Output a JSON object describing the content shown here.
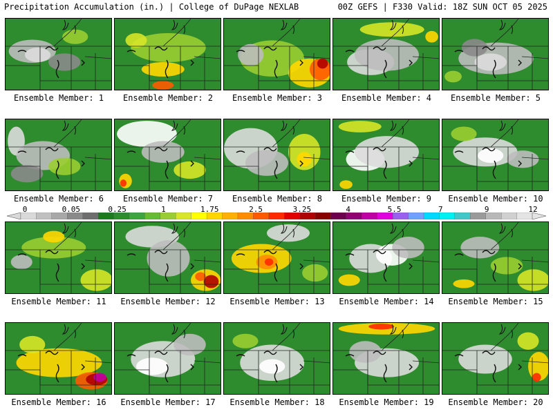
{
  "header": {
    "left": "Precipitation Accumulation (in.) | College of DuPage NEXLAB",
    "right": "00Z GEFS | F330 Valid: 18Z SUN OCT 05 2025"
  },
  "colors": {
    "background": "#ffffff",
    "base_green": "#2e8b2e"
  },
  "colorbar": {
    "ticks": [
      "0",
      "0.05",
      "0.25",
      "1",
      "1.75",
      "2.5",
      "3.25",
      "4",
      "5.5",
      "7",
      "9",
      "12"
    ],
    "colors": [
      "#d9d9d9",
      "#c0c0c0",
      "#a8a8a8",
      "#8a8a8a",
      "#6e6e6e",
      "#1e7a1e",
      "#2e8b2e",
      "#3fa33f",
      "#66bb33",
      "#9acd32",
      "#d7e628",
      "#ffff00",
      "#ffd700",
      "#ffb000",
      "#ff8c00",
      "#ff5a00",
      "#ff2a00",
      "#e00000",
      "#b00000",
      "#880000",
      "#6b004d",
      "#900070",
      "#c000a0",
      "#e000e0",
      "#9a60f0",
      "#6fa0ff",
      "#00d8ff",
      "#00f0f0",
      "#40c8c8",
      "#9a9a9a",
      "#b8b8b8",
      "#d0d0d0",
      "#e4e4e4"
    ]
  },
  "members": [
    {
      "label": "Ensemble Member: 1",
      "blobs": [
        [
          "#bdbdbd",
          0.25,
          0.45,
          0.22,
          0.16
        ],
        [
          "#dcdcdc",
          0.3,
          0.5,
          0.12,
          0.1
        ],
        [
          "#9acd32",
          0.65,
          0.25,
          0.12,
          0.1
        ],
        [
          "#8a8a8a",
          0.55,
          0.6,
          0.15,
          0.12
        ]
      ]
    },
    {
      "label": "Ensemble Member: 2",
      "blobs": [
        [
          "#9acd32",
          0.5,
          0.4,
          0.35,
          0.2
        ],
        [
          "#ffd700",
          0.45,
          0.7,
          0.2,
          0.1
        ],
        [
          "#ff5a00",
          0.45,
          0.92,
          0.1,
          0.06
        ],
        [
          "#d7e628",
          0.2,
          0.3,
          0.1,
          0.1
        ]
      ]
    },
    {
      "label": "Ensemble Member: 3",
      "blobs": [
        [
          "#9acd32",
          0.45,
          0.55,
          0.3,
          0.25
        ],
        [
          "#ffd700",
          0.8,
          0.75,
          0.2,
          0.2
        ],
        [
          "#ff5a00",
          0.9,
          0.7,
          0.1,
          0.15
        ],
        [
          "#b00000",
          0.92,
          0.62,
          0.05,
          0.07
        ],
        [
          "#bdbdbd",
          0.25,
          0.5,
          0.12,
          0.15
        ]
      ]
    },
    {
      "label": "Ensemble Member: 4",
      "blobs": [
        [
          "#dcdcdc",
          0.35,
          0.6,
          0.22,
          0.18
        ],
        [
          "#bdbdbd",
          0.5,
          0.5,
          0.3,
          0.22
        ],
        [
          "#d7e628",
          0.55,
          0.15,
          0.3,
          0.1
        ],
        [
          "#ffd700",
          0.92,
          0.25,
          0.06,
          0.08
        ]
      ]
    },
    {
      "label": "Ensemble Member: 5",
      "blobs": [
        [
          "#bdbdbd",
          0.5,
          0.55,
          0.35,
          0.22
        ],
        [
          "#dcdcdc",
          0.45,
          0.6,
          0.15,
          0.12
        ],
        [
          "#8a8a8a",
          0.3,
          0.4,
          0.12,
          0.12
        ],
        [
          "#9acd32",
          0.1,
          0.8,
          0.08,
          0.08
        ]
      ]
    },
    {
      "label": "Ensemble Member: 6",
      "blobs": [
        [
          "#dcdcdc",
          0.1,
          0.3,
          0.08,
          0.2
        ],
        [
          "#bdbdbd",
          0.35,
          0.5,
          0.25,
          0.2
        ],
        [
          "#9acd32",
          0.55,
          0.65,
          0.15,
          0.12
        ],
        [
          "#8a8a8a",
          0.2,
          0.75,
          0.15,
          0.12
        ]
      ]
    },
    {
      "label": "Ensemble Member: 7",
      "blobs": [
        [
          "#ffffff",
          0.3,
          0.2,
          0.28,
          0.18
        ],
        [
          "#bdbdbd",
          0.45,
          0.45,
          0.2,
          0.15
        ],
        [
          "#ffd700",
          0.1,
          0.85,
          0.06,
          0.1
        ],
        [
          "#ff2a00",
          0.08,
          0.88,
          0.03,
          0.05
        ],
        [
          "#d7e628",
          0.7,
          0.7,
          0.15,
          0.12
        ]
      ]
    },
    {
      "label": "Ensemble Member: 8",
      "blobs": [
        [
          "#dcdcdc",
          0.25,
          0.4,
          0.25,
          0.28
        ],
        [
          "#bdbdbd",
          0.4,
          0.6,
          0.2,
          0.18
        ],
        [
          "#d7e628",
          0.75,
          0.45,
          0.15,
          0.25
        ],
        [
          "#ffd700",
          0.75,
          0.55,
          0.07,
          0.1
        ]
      ]
    },
    {
      "label": "Ensemble Member: 9",
      "blobs": [
        [
          "#ffffff",
          0.3,
          0.55,
          0.18,
          0.16
        ],
        [
          "#dcdcdc",
          0.5,
          0.45,
          0.3,
          0.22
        ],
        [
          "#ffd700",
          0.12,
          0.9,
          0.06,
          0.06
        ],
        [
          "#d7e628",
          0.25,
          0.1,
          0.2,
          0.08
        ]
      ]
    },
    {
      "label": "Ensemble Member: 10",
      "blobs": [
        [
          "#dcdcdc",
          0.4,
          0.45,
          0.3,
          0.2
        ],
        [
          "#ffffff",
          0.45,
          0.5,
          0.12,
          0.1
        ],
        [
          "#bdbdbd",
          0.75,
          0.55,
          0.15,
          0.12
        ],
        [
          "#9acd32",
          0.2,
          0.2,
          0.12,
          0.1
        ]
      ]
    },
    {
      "label": "Ensemble Member: 11",
      "blobs": [
        [
          "#9acd32",
          0.45,
          0.35,
          0.3,
          0.15
        ],
        [
          "#ffd700",
          0.45,
          0.2,
          0.1,
          0.08
        ],
        [
          "#d7e628",
          0.85,
          0.8,
          0.15,
          0.15
        ],
        [
          "#bdbdbd",
          0.15,
          0.55,
          0.1,
          0.1
        ]
      ]
    },
    {
      "label": "Ensemble Member: 12",
      "blobs": [
        [
          "#dcdcdc",
          0.35,
          0.2,
          0.25,
          0.15
        ],
        [
          "#bdbdbd",
          0.5,
          0.5,
          0.2,
          0.25
        ],
        [
          "#ffd700",
          0.85,
          0.8,
          0.14,
          0.15
        ],
        [
          "#b00000",
          0.9,
          0.82,
          0.07,
          0.09
        ],
        [
          "#ff5a00",
          0.8,
          0.75,
          0.05,
          0.06
        ]
      ]
    },
    {
      "label": "Ensemble Member: 13",
      "blobs": [
        [
          "#ffd700",
          0.35,
          0.5,
          0.28,
          0.2
        ],
        [
          "#ff8c00",
          0.4,
          0.55,
          0.1,
          0.1
        ],
        [
          "#ff2a00",
          0.42,
          0.55,
          0.04,
          0.05
        ],
        [
          "#dcdcdc",
          0.6,
          0.15,
          0.2,
          0.12
        ],
        [
          "#9acd32",
          0.85,
          0.7,
          0.12,
          0.12
        ]
      ]
    },
    {
      "label": "Ensemble Member: 14",
      "blobs": [
        [
          "#dcdcdc",
          0.35,
          0.5,
          0.2,
          0.2
        ],
        [
          "#ffffff",
          0.55,
          0.45,
          0.15,
          0.15
        ],
        [
          "#bdbdbd",
          0.7,
          0.35,
          0.15,
          0.15
        ],
        [
          "#ffd700",
          0.15,
          0.8,
          0.1,
          0.08
        ]
      ]
    },
    {
      "label": "Ensemble Member: 15",
      "blobs": [
        [
          "#bdbdbd",
          0.35,
          0.35,
          0.18,
          0.15
        ],
        [
          "#d7e628",
          0.85,
          0.8,
          0.15,
          0.15
        ],
        [
          "#ffd700",
          0.2,
          0.85,
          0.1,
          0.06
        ],
        [
          "#9acd32",
          0.6,
          0.6,
          0.15,
          0.12
        ]
      ]
    },
    {
      "label": "Ensemble Member: 16",
      "blobs": [
        [
          "#ffd700",
          0.5,
          0.55,
          0.4,
          0.2
        ],
        [
          "#ff5a00",
          0.8,
          0.8,
          0.15,
          0.12
        ],
        [
          "#b00000",
          0.85,
          0.78,
          0.1,
          0.08
        ],
        [
          "#c000a0",
          0.88,
          0.75,
          0.06,
          0.06
        ],
        [
          "#d7e628",
          0.25,
          0.3,
          0.12,
          0.12
        ]
      ]
    },
    {
      "label": "Ensemble Member: 17",
      "blobs": [
        [
          "#dcdcdc",
          0.45,
          0.5,
          0.3,
          0.25
        ],
        [
          "#ffffff",
          0.35,
          0.6,
          0.15,
          0.12
        ],
        [
          "#bdbdbd",
          0.7,
          0.3,
          0.15,
          0.15
        ]
      ]
    },
    {
      "label": "Ensemble Member: 18",
      "blobs": [
        [
          "#dcdcdc",
          0.45,
          0.55,
          0.3,
          0.25
        ],
        [
          "#ffffff",
          0.45,
          0.6,
          0.12,
          0.1
        ],
        [
          "#9acd32",
          0.2,
          0.25,
          0.12,
          0.1
        ]
      ]
    },
    {
      "label": "Ensemble Member: 19",
      "blobs": [
        [
          "#ffd700",
          0.5,
          0.08,
          0.45,
          0.08
        ],
        [
          "#ff2a00",
          0.45,
          0.05,
          0.12,
          0.04
        ],
        [
          "#dcdcdc",
          0.5,
          0.55,
          0.3,
          0.2
        ],
        [
          "#bdbdbd",
          0.3,
          0.4,
          0.15,
          0.15
        ]
      ]
    },
    {
      "label": "Ensemble Member: 20",
      "blobs": [
        [
          "#dcdcdc",
          0.4,
          0.5,
          0.25,
          0.2
        ],
        [
          "#ffd700",
          0.9,
          0.6,
          0.1,
          0.2
        ],
        [
          "#ff2a00",
          0.88,
          0.75,
          0.04,
          0.06
        ],
        [
          "#d7e628",
          0.8,
          0.25,
          0.1,
          0.12
        ]
      ]
    }
  ]
}
